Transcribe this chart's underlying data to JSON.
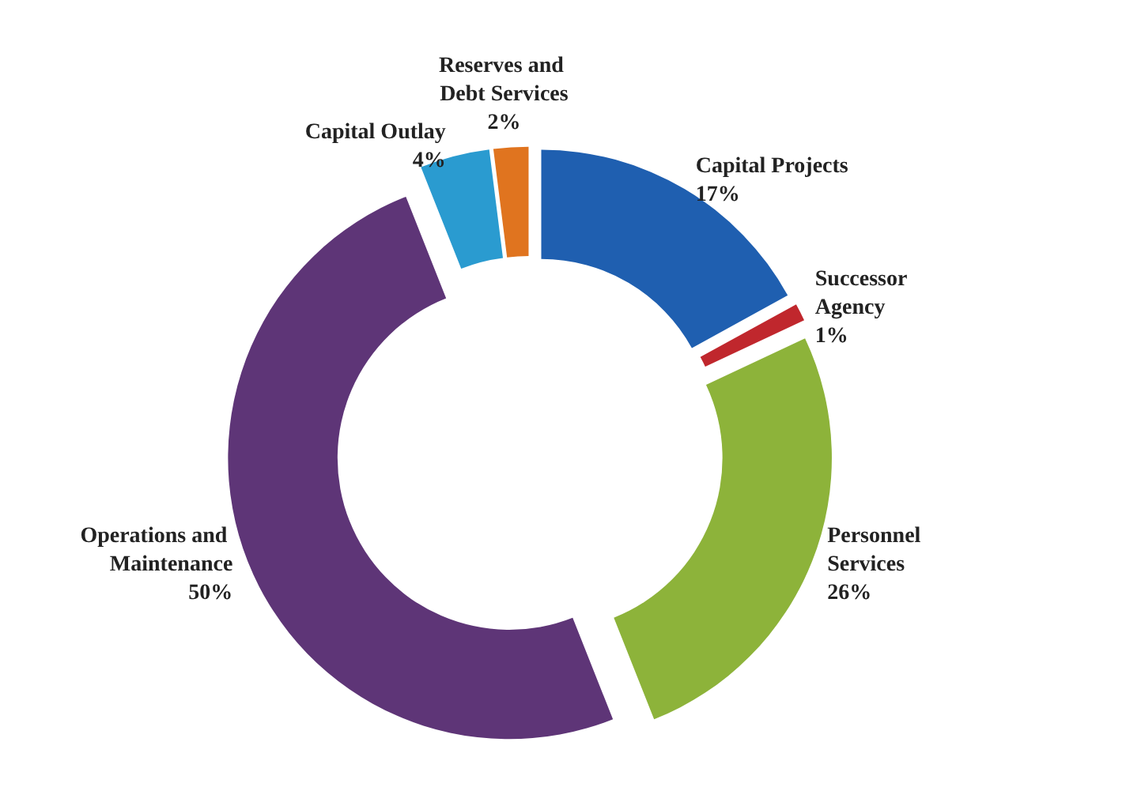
{
  "chart_data": {
    "type": "donut",
    "categories": [
      "Capital Projects",
      "Successor Agency",
      "Personnel Services",
      "Operations and Maintenance",
      "Capital Outlay",
      "Reserves and Debt Services"
    ],
    "values": [
      17,
      1,
      26,
      50,
      4,
      2
    ],
    "value_labels": [
      "17%",
      "1%",
      "26%",
      "50%",
      "4%",
      "2%"
    ],
    "colors": [
      "#1f5fb0",
      "#c0272d",
      "#8db33a",
      "#5e3577",
      "#2a9bd0",
      "#e0741f"
    ],
    "legend": false
  }
}
